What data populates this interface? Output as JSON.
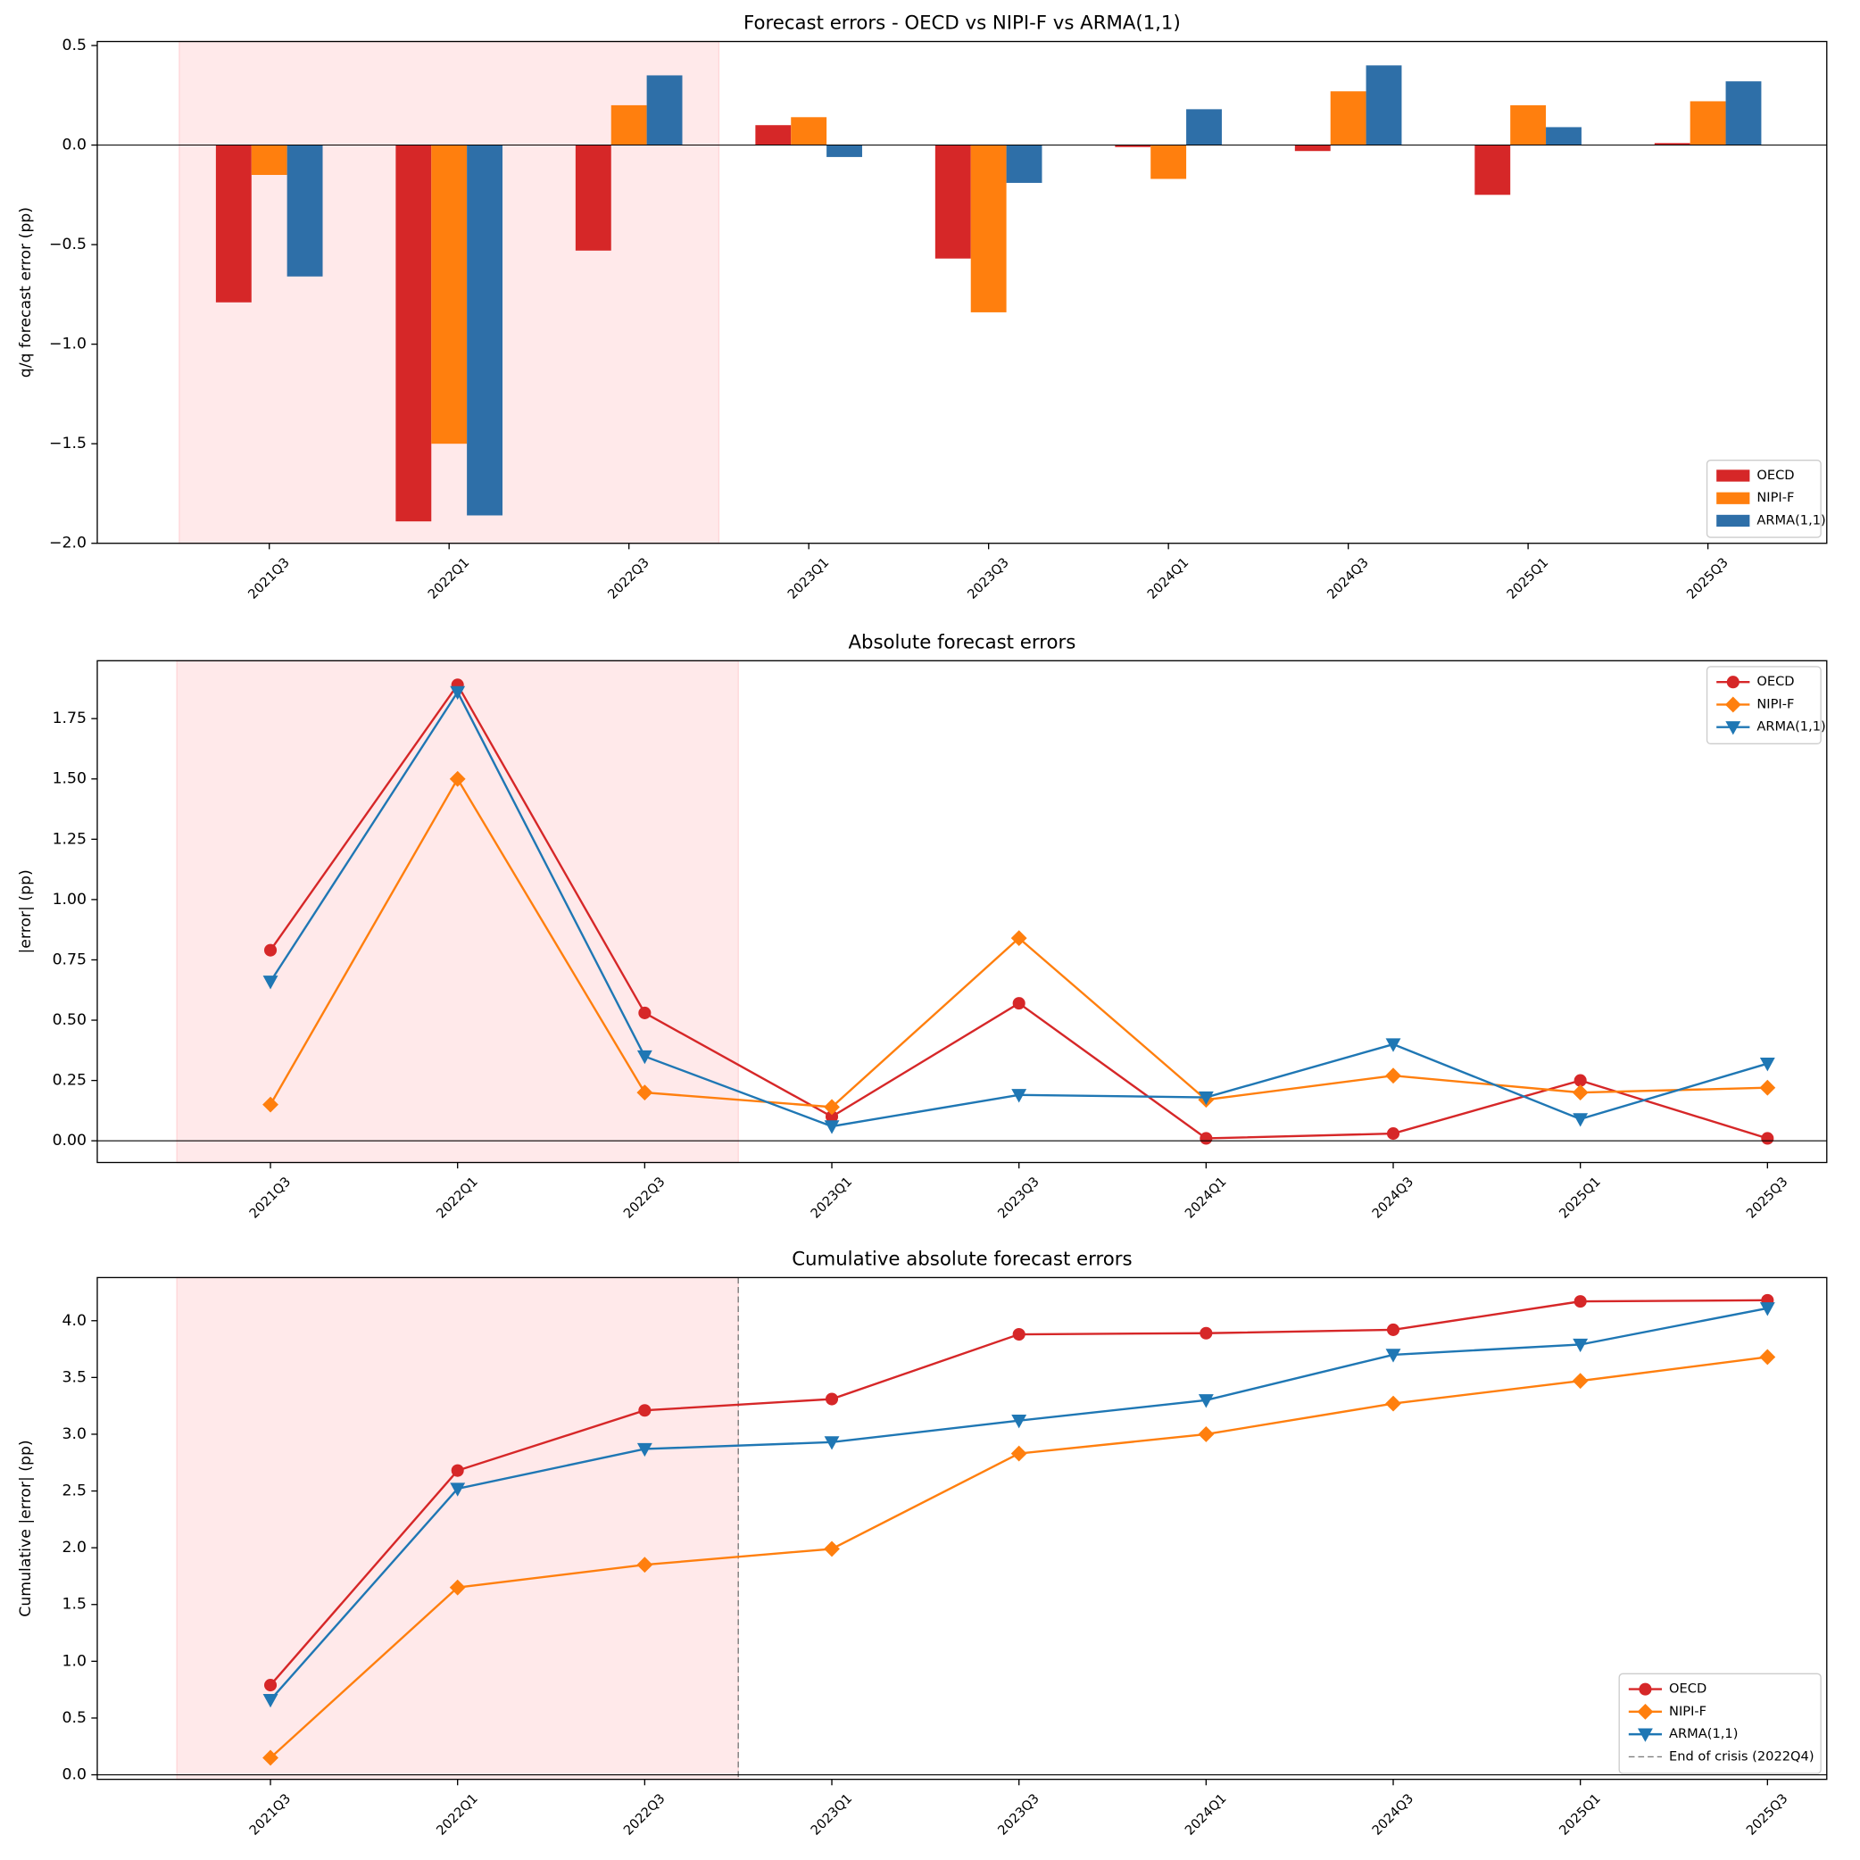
{
  "chart_data": [
    {
      "type": "bar",
      "title": "Forecast errors - OECD vs NIPI-F vs ARMA(1,1)",
      "y_label": "q/q forecast error (pp)",
      "categories": [
        "2021Q3",
        "2022Q1",
        "2022Q3",
        "2023Q1",
        "2023Q3",
        "2024Q1",
        "2024Q3",
        "2025Q1",
        "2025Q3"
      ],
      "series": [
        {
          "name": "OECD",
          "color": "#d62728",
          "values": [
            -0.79,
            -1.89,
            -0.53,
            0.1,
            -0.57,
            -0.01,
            -0.03,
            -0.25,
            0.01
          ]
        },
        {
          "name": "NIPI-F",
          "color": "#ff7f0e",
          "values": [
            -0.15,
            -1.5,
            0.2,
            0.14,
            -0.84,
            -0.17,
            0.27,
            0.2,
            0.22
          ]
        },
        {
          "name": "ARMA(1,1)",
          "color": "#2e6fa8",
          "values": [
            -0.66,
            -1.86,
            0.35,
            -0.06,
            -0.19,
            0.18,
            0.4,
            0.09,
            0.32
          ]
        }
      ],
      "ylim": [
        -2.0,
        0.52
      ],
      "yticks": [
        {
          "value": -2.0,
          "label": "−2.0"
        },
        {
          "value": -1.5,
          "label": "−1.5"
        },
        {
          "value": -1.0,
          "label": "−1.0"
        },
        {
          "value": -0.5,
          "label": "−0.5"
        },
        {
          "value": 0.0,
          "label": "0.0"
        },
        {
          "value": 0.5,
          "label": "0.5"
        }
      ],
      "legend": "lower right"
    },
    {
      "type": "line",
      "title": "Absolute forecast errors",
      "y_label": "|error| (pp)",
      "categories": [
        "2021Q3",
        "2022Q1",
        "2022Q3",
        "2023Q1",
        "2023Q3",
        "2024Q1",
        "2024Q3",
        "2025Q1",
        "2025Q3"
      ],
      "series": [
        {
          "name": "OECD",
          "color": "#d62728",
          "marker": "circle",
          "values": [
            0.79,
            1.89,
            0.53,
            0.1,
            0.57,
            0.01,
            0.03,
            0.25,
            0.01
          ]
        },
        {
          "name": "NIPI-F",
          "color": "#ff7f0e",
          "marker": "diamond",
          "values": [
            0.15,
            1.5,
            0.2,
            0.14,
            0.84,
            0.17,
            0.27,
            0.2,
            0.22
          ]
        },
        {
          "name": "ARMA(1,1)",
          "color": "#1f77b4",
          "marker": "triangle-down",
          "values": [
            0.66,
            1.86,
            0.35,
            0.06,
            0.19,
            0.18,
            0.4,
            0.09,
            0.32
          ]
        }
      ],
      "ylim": [
        -0.09,
        1.99
      ],
      "yticks": [
        {
          "value": 0.0,
          "label": "0.00"
        },
        {
          "value": 0.25,
          "label": "0.25"
        },
        {
          "value": 0.5,
          "label": "0.50"
        },
        {
          "value": 0.75,
          "label": "0.75"
        },
        {
          "value": 1.0,
          "label": "1.00"
        },
        {
          "value": 1.25,
          "label": "1.25"
        },
        {
          "value": 1.5,
          "label": "1.50"
        },
        {
          "value": 1.75,
          "label": "1.75"
        }
      ],
      "legend": "upper right"
    },
    {
      "type": "line",
      "title": "Cumulative absolute forecast errors",
      "y_label": "Cumulative |error| (pp)",
      "categories": [
        "2021Q3",
        "2022Q1",
        "2022Q3",
        "2023Q1",
        "2023Q3",
        "2024Q1",
        "2024Q3",
        "2025Q1",
        "2025Q3"
      ],
      "series": [
        {
          "name": "OECD",
          "color": "#d62728",
          "marker": "circle",
          "values": [
            0.79,
            2.68,
            3.21,
            3.31,
            3.88,
            3.89,
            3.92,
            4.17,
            4.18
          ]
        },
        {
          "name": "NIPI-F",
          "color": "#ff7f0e",
          "marker": "diamond",
          "values": [
            0.15,
            1.65,
            1.85,
            1.99,
            2.83,
            3.0,
            3.27,
            3.47,
            3.68
          ]
        },
        {
          "name": "ARMA(1,1)",
          "color": "#1f77b4",
          "marker": "triangle-down",
          "values": [
            0.66,
            2.52,
            2.87,
            2.93,
            3.12,
            3.3,
            3.7,
            3.79,
            4.11
          ]
        }
      ],
      "ylim": [
        -0.04,
        4.38
      ],
      "yticks": [
        {
          "value": 0.0,
          "label": "0.0"
        },
        {
          "value": 0.5,
          "label": "0.5"
        },
        {
          "value": 1.0,
          "label": "1.0"
        },
        {
          "value": 1.5,
          "label": "1.5"
        },
        {
          "value": 2.0,
          "label": "2.0"
        },
        {
          "value": 2.5,
          "label": "2.5"
        },
        {
          "value": 3.0,
          "label": "3.0"
        },
        {
          "value": 3.5,
          "label": "3.5"
        },
        {
          "value": 4.0,
          "label": "4.0"
        }
      ],
      "vline": {
        "label": "End of crisis (2022Q4)",
        "color": "#777777"
      },
      "legend": "lower right"
    }
  ]
}
